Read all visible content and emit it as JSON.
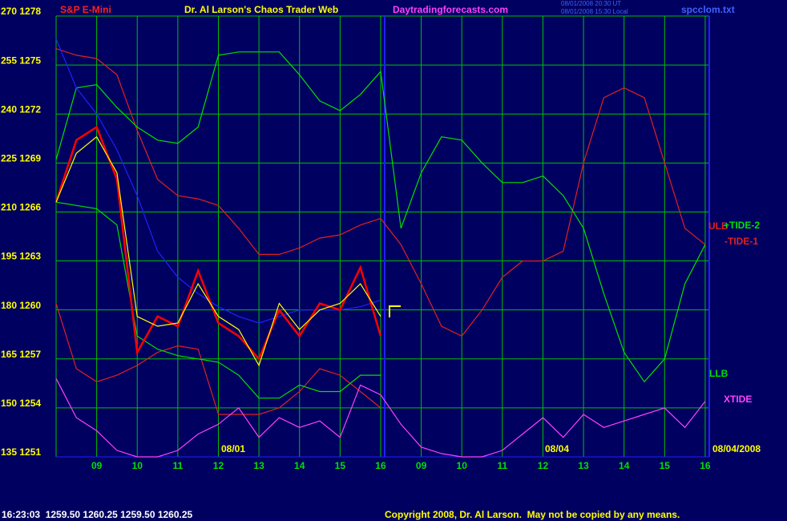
{
  "chart_data": {
    "type": "line",
    "symbol": "S&P E-Mini",
    "title": "Dr. Al Larson's Chaos Trader Web",
    "site": "Daytradingforecasts.com",
    "stamp_ut": "08/01/2008 20:30 UT",
    "stamp_local": "08/01/2008 15:30 Local",
    "file": "spcclom.txt",
    "day_labels": [
      "08/01",
      "08/04"
    ],
    "end_date": "08/04/2008",
    "quote": "16:23:03  1259.50 1260.25 1259.50 1260.25",
    "copyright": "Copyright 2008, Dr. Al Larson.  May not be copied by any means.",
    "grid": true,
    "grid_color": "#00c000",
    "background": "#000060",
    "x": [
      0,
      0.5,
      1,
      1.5,
      2,
      2.5,
      3,
      3.5,
      4,
      4.5,
      5,
      5.5,
      6,
      6.5,
      7,
      7.5,
      8,
      8.5,
      9,
      9.5,
      10,
      10.5,
      11,
      11.5,
      12,
      12.5,
      13,
      13.5,
      14,
      14.5,
      15,
      15.5,
      16
    ],
    "xlim": [
      0,
      16.1
    ],
    "xticks": [
      {
        "value": 1,
        "label": "09"
      },
      {
        "value": 2,
        "label": "10"
      },
      {
        "value": 3,
        "label": "11"
      },
      {
        "value": 4,
        "label": "12"
      },
      {
        "value": 5,
        "label": "13"
      },
      {
        "value": 6,
        "label": "14"
      },
      {
        "value": 7,
        "label": "15"
      },
      {
        "value": 8,
        "label": "16"
      },
      {
        "value": 9,
        "label": "09"
      },
      {
        "value": 10,
        "label": "10"
      },
      {
        "value": 11,
        "label": "11"
      },
      {
        "value": 12,
        "label": "12"
      },
      {
        "value": 13,
        "label": "13"
      },
      {
        "value": 14,
        "label": "14"
      },
      {
        "value": 15,
        "label": "15"
      },
      {
        "value": 16,
        "label": "16"
      }
    ],
    "ylim": [
      135,
      270
    ],
    "yticks": [
      {
        "value": 270,
        "label": "270 1278"
      },
      {
        "value": 255,
        "label": "255 1275"
      },
      {
        "value": 240,
        "label": "240 1272"
      },
      {
        "value": 225,
        "label": "225 1269"
      },
      {
        "value": 210,
        "label": "210 1266"
      },
      {
        "value": 195,
        "label": "195 1263"
      },
      {
        "value": 180,
        "label": "180 1260"
      },
      {
        "value": 165,
        "label": "165 1257"
      },
      {
        "value": 150,
        "label": "150 1254"
      },
      {
        "value": 135,
        "label": "135 1251"
      }
    ],
    "series": [
      {
        "name": "ULB",
        "color": "#e02020",
        "values": [
          260,
          258,
          257,
          252,
          235,
          220,
          215,
          214,
          212,
          205,
          197,
          197,
          199,
          202,
          203,
          206,
          208,
          200,
          188,
          175,
          172,
          180,
          190,
          195,
          195,
          198,
          225,
          245,
          248,
          245,
          225,
          205,
          200
        ]
      },
      {
        "name": "-TIDE-1",
        "color": "#e02020",
        "values": [
          182,
          162,
          158,
          160,
          163,
          167,
          169,
          168,
          148,
          148,
          148,
          150,
          155,
          162,
          160,
          155,
          150,
          null,
          null,
          null,
          null,
          null,
          null,
          null,
          null,
          null,
          null,
          null,
          null,
          null,
          null,
          null,
          null
        ]
      },
      {
        "name": "+TIDE-2",
        "color": "#00e000",
        "values": [
          226,
          248,
          249,
          242,
          236,
          232,
          231,
          236,
          258,
          259,
          259,
          259,
          252,
          244,
          241,
          246,
          253,
          205,
          222,
          233,
          232,
          225,
          219,
          219,
          221,
          215,
          205,
          185,
          167,
          158,
          165,
          188,
          200
        ]
      },
      {
        "name": "LLB",
        "color": "#00e000",
        "values": [
          213,
          212,
          211,
          206,
          172,
          168,
          166,
          165,
          164,
          160,
          153,
          153,
          157,
          155,
          155,
          160,
          160,
          null,
          null,
          null,
          null,
          null,
          null,
          null,
          null,
          null,
          null,
          null,
          null,
          null,
          null,
          null,
          null
        ]
      },
      {
        "name": "XTIDE",
        "color": "#ff40ff",
        "values": [
          159,
          147,
          143,
          137,
          135,
          135,
          137,
          142,
          145,
          150,
          141,
          147,
          144,
          146,
          141,
          157,
          154,
          145,
          138,
          136,
          135,
          135,
          137,
          142,
          147,
          141,
          148,
          144,
          146,
          148,
          150,
          144,
          152
        ]
      },
      {
        "color": "#2020ff",
        "values": [
          263,
          248,
          240,
          229,
          215,
          198,
          190,
          185,
          181,
          178,
          176,
          178,
          180,
          180,
          180,
          181,
          183,
          null,
          null,
          null,
          null,
          null,
          null,
          null,
          null,
          null,
          null,
          null,
          null,
          null,
          null,
          null,
          null
        ]
      },
      {
        "color": "#ff0000",
        "values": [
          213,
          232,
          236,
          220,
          167,
          178,
          175,
          192,
          176,
          172,
          165,
          180,
          172,
          182,
          180,
          193,
          172,
          null,
          null,
          null,
          null,
          null,
          null,
          null,
          null,
          null,
          null,
          null,
          null,
          null,
          null,
          null,
          null
        ]
      },
      {
        "color": "#ffff00",
        "values": [
          213,
          228,
          233,
          222,
          178,
          175,
          176,
          188,
          178,
          174,
          163,
          182,
          174,
          180,
          182,
          188,
          178,
          null,
          null,
          null,
          null,
          null,
          null,
          null,
          null,
          null,
          null,
          null,
          null,
          null,
          null,
          null,
          null
        ]
      }
    ]
  }
}
